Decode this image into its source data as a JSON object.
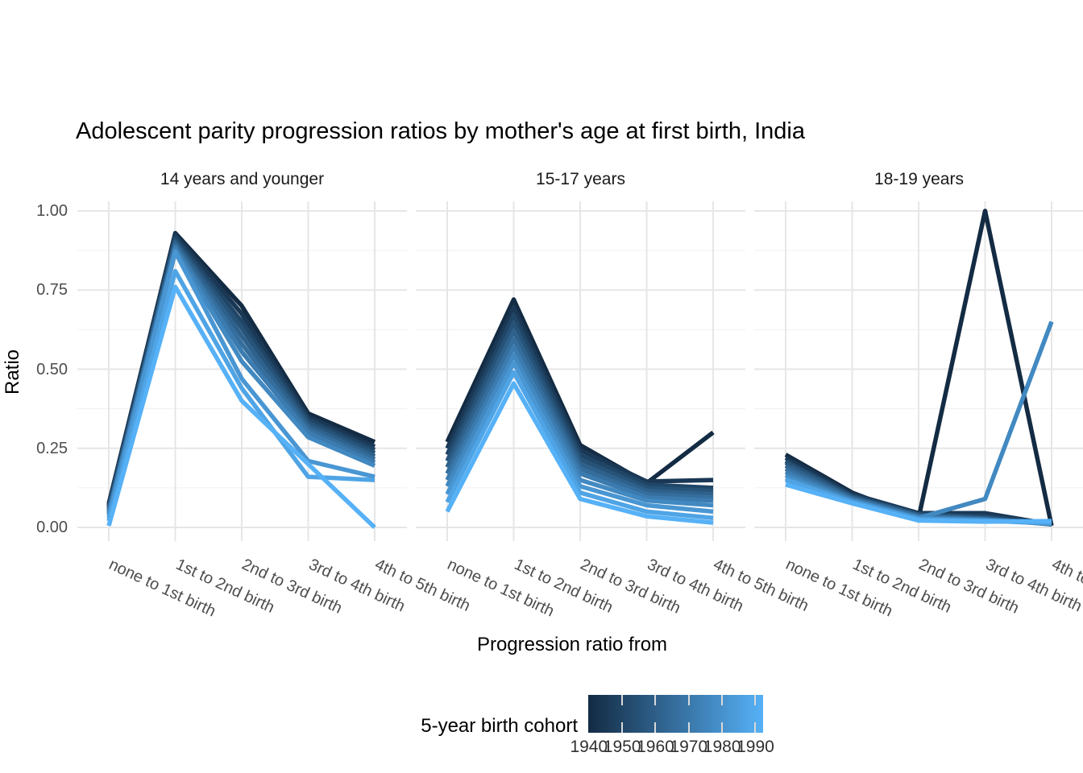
{
  "chart_data": {
    "type": "line",
    "title": "Adolescent parity progression ratios by mother's age at first birth,  India",
    "xlabel": "Progression ratio from",
    "ylabel": "Ratio",
    "ylim": [
      0,
      1
    ],
    "grid": "on",
    "legend_position": "bottom",
    "yaxis": {
      "labels": [
        "1.00",
        "0.75",
        "0.50",
        "0.25",
        "0.00"
      ],
      "values": [
        1.0,
        0.75,
        0.5,
        0.25,
        0.0
      ],
      "minor_values": [
        0.125,
        0.375,
        0.625,
        0.875
      ]
    },
    "categories": [
      "none to 1st birth",
      "1st to 2nd birth",
      "2nd to 3rd birth",
      "3rd to 4th birth",
      "4th to 5th birth"
    ],
    "legend": {
      "title": "5-year birth cohort",
      "ticks": [
        "1940",
        "1950",
        "1960",
        "1970",
        "1980",
        "1990"
      ],
      "tick_years": [
        1940,
        1950,
        1960,
        1970,
        1980,
        1990
      ],
      "color_low": "#132B43",
      "color_mid": "#356E9D",
      "color_high": "#56B1F7",
      "domain": [
        1939.8,
        1992.3
      ]
    },
    "facets": [
      {
        "label": "14 years and younger",
        "series": [
          {
            "cohort": 1940,
            "values": [
              0.075,
              0.93,
              0.7,
              0.36,
              0.27
            ]
          },
          {
            "cohort": 1945,
            "values": [
              0.07,
              0.925,
              0.675,
              0.35,
              0.255
            ]
          },
          {
            "cohort": 1950,
            "values": [
              0.065,
              0.915,
              0.65,
              0.34,
              0.245
            ]
          },
          {
            "cohort": 1955,
            "values": [
              0.06,
              0.905,
              0.63,
              0.33,
              0.235
            ]
          },
          {
            "cohort": 1960,
            "values": [
              0.055,
              0.9,
              0.605,
              0.32,
              0.225
            ]
          },
          {
            "cohort": 1965,
            "values": [
              0.05,
              0.89,
              0.58,
              0.31,
              0.215
            ]
          },
          {
            "cohort": 1970,
            "values": [
              0.045,
              0.885,
              0.555,
              0.3,
              0.205
            ]
          },
          {
            "cohort": 1975,
            "values": [
              0.04,
              0.875,
              0.525,
              0.285,
              0.195
            ]
          },
          {
            "cohort": 1980,
            "values": [
              0.03,
              0.87,
              0.47,
              0.21,
              0.16
            ]
          },
          {
            "cohort": 1985,
            "values": [
              0.02,
              0.81,
              0.44,
              0.16,
              0.15
            ]
          },
          {
            "cohort": 1990,
            "values": [
              0.005,
              0.76,
              0.4,
              0.2,
              0.0
            ]
          }
        ]
      },
      {
        "label": "15-17 years",
        "series": [
          {
            "cohort": 1940,
            "values": [
              0.27,
              0.72,
              0.26,
              0.14,
              0.3
            ]
          },
          {
            "cohort": 1945,
            "values": [
              0.25,
              0.695,
              0.245,
              0.145,
              0.15
            ]
          },
          {
            "cohort": 1950,
            "values": [
              0.23,
              0.67,
              0.23,
              0.135,
              0.125
            ]
          },
          {
            "cohort": 1955,
            "values": [
              0.21,
              0.645,
              0.215,
              0.125,
              0.115
            ]
          },
          {
            "cohort": 1960,
            "values": [
              0.19,
              0.62,
              0.2,
              0.115,
              0.105
            ]
          },
          {
            "cohort": 1965,
            "values": [
              0.17,
              0.595,
              0.185,
              0.105,
              0.095
            ]
          },
          {
            "cohort": 1970,
            "values": [
              0.15,
              0.57,
              0.17,
              0.095,
              0.085
            ]
          },
          {
            "cohort": 1975,
            "values": [
              0.13,
              0.545,
              0.15,
              0.085,
              0.07
            ]
          },
          {
            "cohort": 1980,
            "values": [
              0.105,
              0.52,
              0.13,
              0.07,
              0.05
            ]
          },
          {
            "cohort": 1985,
            "values": [
              0.08,
              0.49,
              0.11,
              0.05,
              0.03
            ]
          },
          {
            "cohort": 1990,
            "values": [
              0.05,
              0.455,
              0.09,
              0.035,
              0.015
            ]
          }
        ]
      },
      {
        "label": "18-19 years",
        "series": [
          {
            "cohort": 1940,
            "values": [
              0.23,
              0.11,
              0.03,
              1.0,
              0.005
            ]
          },
          {
            "cohort": 1945,
            "values": [
              0.22,
              0.105,
              0.045,
              0.045,
              0.01
            ]
          },
          {
            "cohort": 1950,
            "values": [
              0.21,
              0.1,
              0.042,
              0.035,
              0.01
            ]
          },
          {
            "cohort": 1955,
            "values": [
              0.205,
              0.097,
              0.04,
              0.03,
              0.01
            ]
          },
          {
            "cohort": 1960,
            "values": [
              0.195,
              0.094,
              0.038,
              0.028,
              0.01
            ]
          },
          {
            "cohort": 1965,
            "values": [
              0.185,
              0.091,
              0.035,
              0.026,
              0.01
            ]
          },
          {
            "cohort": 1970,
            "values": [
              0.175,
              0.088,
              0.032,
              0.025,
              0.012
            ]
          },
          {
            "cohort": 1975,
            "values": [
              0.165,
              0.085,
              0.03,
              0.09,
              0.65
            ]
          },
          {
            "cohort": 1980,
            "values": [
              0.155,
              0.082,
              0.028,
              0.022,
              0.012
            ]
          },
          {
            "cohort": 1985,
            "values": [
              0.15,
              0.079,
              0.025,
              0.02,
              0.015
            ]
          },
          {
            "cohort": 1990,
            "values": [
              0.135,
              0.076,
              0.022,
              0.018,
              0.02
            ]
          }
        ]
      }
    ],
    "style": {
      "grid_major_color": "#E6E6E6",
      "grid_minor_color": "#F0F0F0",
      "line_width": 5.5
    }
  }
}
